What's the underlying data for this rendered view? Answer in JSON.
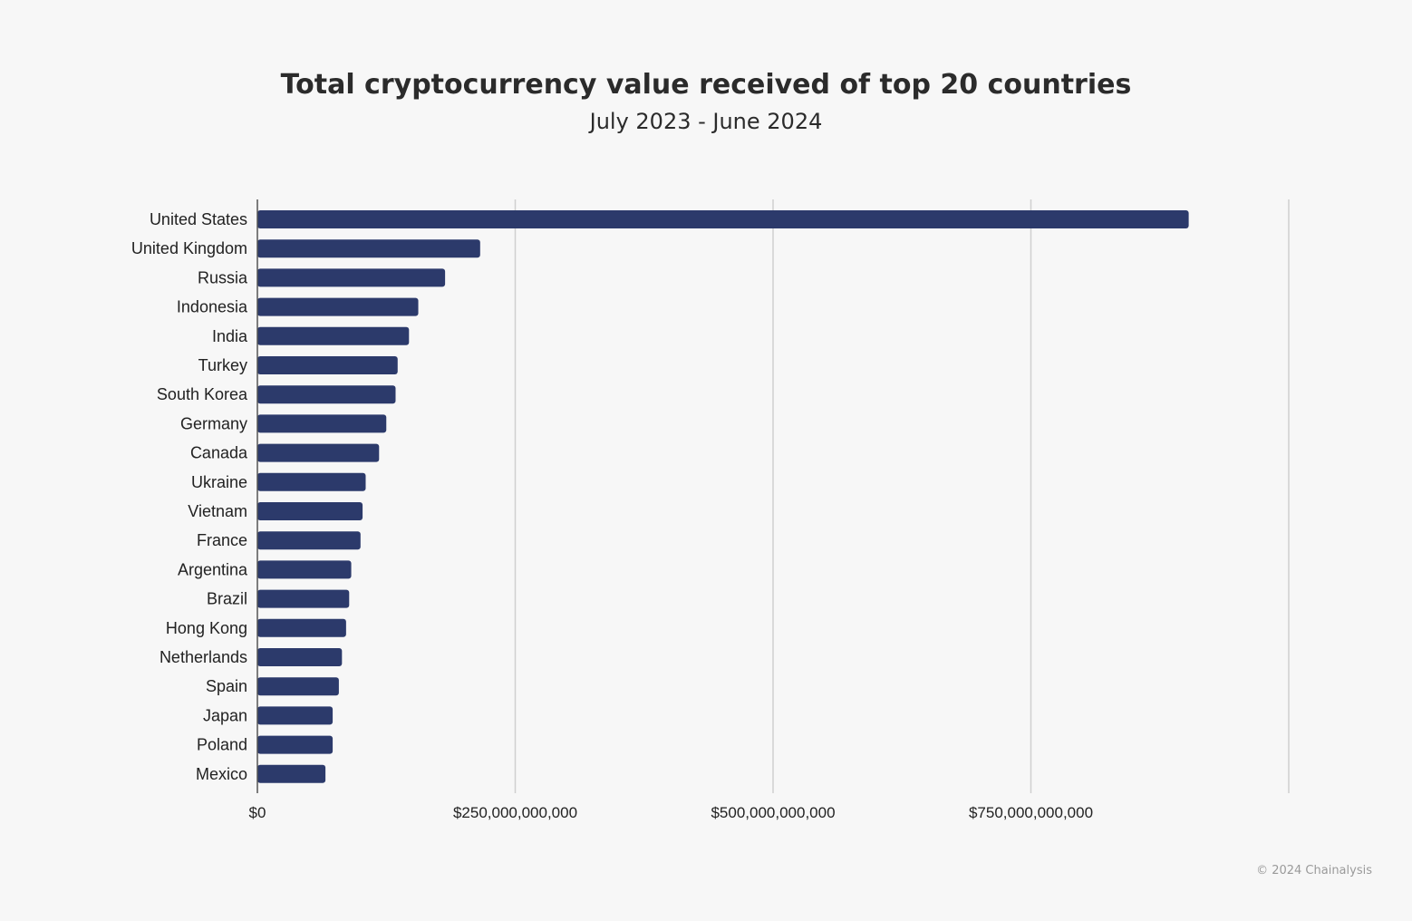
{
  "chart_data": {
    "type": "bar",
    "orientation": "horizontal",
    "title": "Total cryptocurrency value received of top 20 countries",
    "subtitle": "July 2023 - June 2024",
    "categories": [
      "United States",
      "United Kingdom",
      "Russia",
      "Indonesia",
      "India",
      "Turkey",
      "South Korea",
      "Germany",
      "Canada",
      "Ukraine",
      "Vietnam",
      "France",
      "Argentina",
      "Brazil",
      "Hong Kong",
      "Netherlands",
      "Spain",
      "Japan",
      "Poland",
      "Mexico"
    ],
    "values": [
      903000000000,
      216000000000,
      182000000000,
      156000000000,
      147000000000,
      136000000000,
      134000000000,
      125000000000,
      118000000000,
      105000000000,
      102000000000,
      100000000000,
      91000000000,
      89000000000,
      86000000000,
      82000000000,
      79000000000,
      73000000000,
      73000000000,
      66000000000
    ],
    "xlim": [
      0,
      1000000000000
    ],
    "xticks": [
      0,
      250000000000,
      500000000000,
      750000000000,
      1000000000000
    ],
    "xtick_labels": [
      "$0",
      "$250,000,000,000",
      "$500,000,000,000",
      "$750,000,000,000",
      ""
    ],
    "grid": true,
    "bar_color": "#2c3a6b"
  },
  "footer": "© 2024 Chainalysis"
}
